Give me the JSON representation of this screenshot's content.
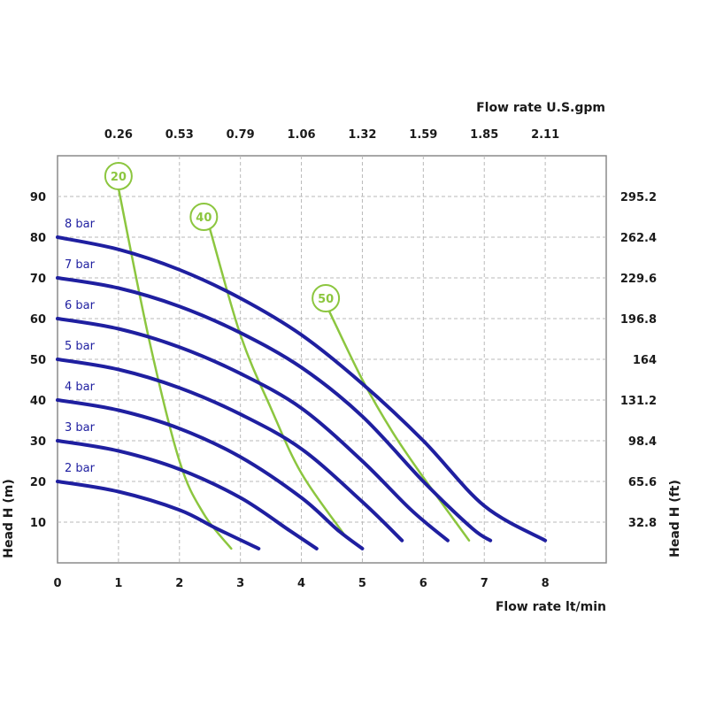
{
  "chart_data": {
    "type": "line",
    "x_label_bottom": "Flow rate  lt/min",
    "x_label_top": "Flow rate U.S.gpm",
    "y_label_left": "Head H (m)",
    "y_label_right": "Head H (ft)",
    "x_ticks_bottom": [
      "0",
      "1",
      "2",
      "3",
      "4",
      "5",
      "6",
      "7",
      "8"
    ],
    "x_ticks_top": [
      {
        "x": 1,
        "label": "0.26"
      },
      {
        "x": 2,
        "label": "0.53"
      },
      {
        "x": 3,
        "label": "0.79"
      },
      {
        "x": 4,
        "label": "1.06"
      },
      {
        "x": 5,
        "label": "1.32"
      },
      {
        "x": 6,
        "label": "1.59"
      },
      {
        "x": 7,
        "label": "1.85"
      },
      {
        "x": 8,
        "label": "2.11"
      }
    ],
    "y_ticks_left": [
      "10",
      "20",
      "30",
      "40",
      "50",
      "60",
      "70",
      "80",
      "90"
    ],
    "y_ticks_right": [
      {
        "y": 10,
        "label": "32.8"
      },
      {
        "y": 20,
        "label": "65.6"
      },
      {
        "y": 30,
        "label": "98.4"
      },
      {
        "y": 40,
        "label": "131.2"
      },
      {
        "y": 50,
        "label": "164"
      },
      {
        "y": 60,
        "label": "196.8"
      },
      {
        "y": 70,
        "label": "229.6"
      },
      {
        "y": 80,
        "label": "262.4"
      },
      {
        "y": 90,
        "label": "295.2"
      }
    ],
    "xlim": [
      0,
      9
    ],
    "ylim": [
      0,
      100
    ],
    "grid": true,
    "series": [
      {
        "name": "2 bar",
        "color": "#1f1fa0",
        "points": [
          [
            0,
            20
          ],
          [
            1,
            17.5
          ],
          [
            2,
            13
          ],
          [
            2.6,
            8.5
          ],
          [
            3.3,
            3.5
          ]
        ]
      },
      {
        "name": "3 bar",
        "color": "#1f1fa0",
        "points": [
          [
            0,
            30
          ],
          [
            1,
            27.5
          ],
          [
            2,
            23
          ],
          [
            3,
            16
          ],
          [
            3.8,
            8
          ],
          [
            4.25,
            3.5
          ]
        ]
      },
      {
        "name": "4 bar",
        "color": "#1f1fa0",
        "points": [
          [
            0,
            40
          ],
          [
            1,
            37.5
          ],
          [
            2,
            33
          ],
          [
            3,
            26
          ],
          [
            4,
            16
          ],
          [
            4.6,
            8
          ],
          [
            5,
            3.5
          ]
        ]
      },
      {
        "name": "5 bar",
        "color": "#1f1fa0",
        "points": [
          [
            0,
            50
          ],
          [
            1,
            47.5
          ],
          [
            2,
            43
          ],
          [
            3,
            36.5
          ],
          [
            4,
            28
          ],
          [
            5,
            15
          ],
          [
            5.65,
            5.5
          ]
        ]
      },
      {
        "name": "6 bar",
        "color": "#1f1fa0",
        "points": [
          [
            0,
            60
          ],
          [
            1,
            57.5
          ],
          [
            2,
            53
          ],
          [
            3,
            46.5
          ],
          [
            4,
            38
          ],
          [
            5,
            25
          ],
          [
            5.8,
            13
          ],
          [
            6.4,
            5.5
          ]
        ]
      },
      {
        "name": "7 bar",
        "color": "#1f1fa0",
        "points": [
          [
            0,
            70
          ],
          [
            1,
            67.5
          ],
          [
            2,
            63
          ],
          [
            3,
            56.5
          ],
          [
            4,
            48
          ],
          [
            5,
            36
          ],
          [
            6,
            20
          ],
          [
            6.8,
            8.5
          ],
          [
            7.1,
            5.5
          ]
        ]
      },
      {
        "name": "8 bar",
        "color": "#1f1fa0",
        "points": [
          [
            0,
            80
          ],
          [
            1,
            77
          ],
          [
            2,
            72
          ],
          [
            3,
            65
          ],
          [
            4,
            56
          ],
          [
            5,
            44
          ],
          [
            6,
            30
          ],
          [
            7,
            14
          ],
          [
            8,
            5.5
          ]
        ]
      }
    ],
    "air_consumption": [
      {
        "label": "20",
        "color": "#8cc63f",
        "points": [
          [
            1.0,
            92
          ],
          [
            1.5,
            55
          ],
          [
            2.0,
            25
          ],
          [
            2.4,
            12
          ],
          [
            2.85,
            3.5
          ]
        ],
        "badge": [
          1.0,
          95
        ]
      },
      {
        "label": "40",
        "color": "#8cc63f",
        "points": [
          [
            2.5,
            82
          ],
          [
            3.0,
            56
          ],
          [
            3.5,
            38
          ],
          [
            4.0,
            22
          ],
          [
            4.7,
            7
          ]
        ],
        "badge": [
          2.4,
          85
        ]
      },
      {
        "label": "50",
        "color": "#8cc63f",
        "points": [
          [
            4.45,
            62
          ],
          [
            5.0,
            45
          ],
          [
            5.5,
            32
          ],
          [
            6.0,
            21
          ],
          [
            6.75,
            5.5
          ]
        ],
        "badge": [
          4.4,
          65
        ]
      }
    ]
  }
}
